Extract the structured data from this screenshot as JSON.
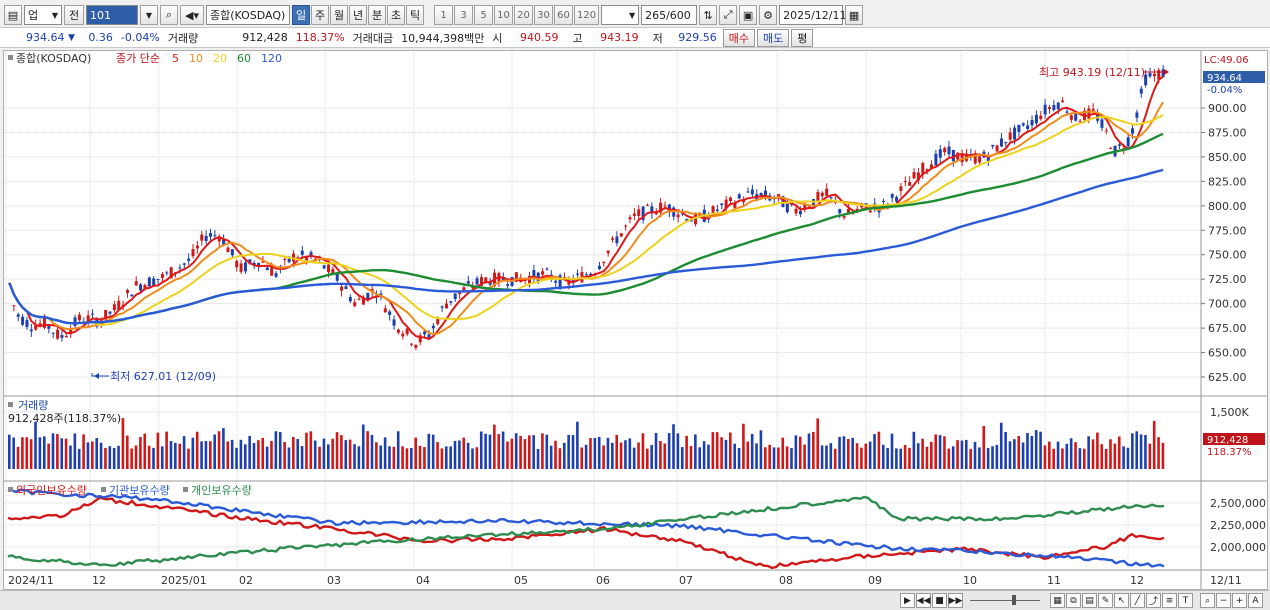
{
  "toolbar": {
    "market_select": "업",
    "prev_label": "전",
    "code_value": "101",
    "stock_name": "종합(KOSDAQ)",
    "period_tabs": [
      "일",
      "주",
      "월",
      "년",
      "분",
      "초",
      "틱"
    ],
    "active_period": "일",
    "minute_options": [
      "1",
      "3",
      "5",
      "10",
      "20",
      "30",
      "60",
      "120"
    ],
    "count_value": "265",
    "count_max": "/600",
    "date_value": "2025/12/11"
  },
  "quote": {
    "price": "934.64",
    "change": "0.36",
    "change_pct": "-0.04%",
    "volume_label": "거래량",
    "volume": "912,428",
    "volume_pct": "118.37%",
    "amount_label": "거래대금",
    "amount": "10,944,398백만",
    "open_label": "시",
    "open": "940.59",
    "high_label": "고",
    "high": "943.19",
    "low_label": "저",
    "low": "929.56",
    "buy_button": "매수",
    "sell_button": "매도",
    "eval_button": "평"
  },
  "price_panel": {
    "legend_name": "종합(KOSDAQ)",
    "legend_ma_label": "종가 단순",
    "ma_periods": [
      {
        "label": "5",
        "color": "#e01818"
      },
      {
        "label": "10",
        "color": "#f08c1c"
      },
      {
        "label": "20",
        "color": "#ecd21c"
      },
      {
        "label": "60",
        "color": "#1e8c32"
      },
      {
        "label": "120",
        "color": "#2a5ad8"
      }
    ],
    "y_ticks": [
      "900.00",
      "875.00",
      "850.00",
      "825.00",
      "800.00",
      "775.00",
      "750.00",
      "725.00",
      "700.00",
      "675.00",
      "650.00",
      "625.00"
    ],
    "top_partial_label": "LC:49.06",
    "current_price_tag": "934.64",
    "current_change_tag": "-0.04%",
    "max_annotation": "최고 943.19 (12/11)",
    "min_annotation": "최저 627.01 (12/09)"
  },
  "volume_panel": {
    "title": "거래량",
    "value_label": "912,428주(118.37%)",
    "y_ticks": [
      "1,500K"
    ],
    "current_tag": "912,428",
    "current_pct_tag": "118.37%"
  },
  "holdings_panel": {
    "legends": [
      {
        "label": "외국인보유수량",
        "color": "#d01818"
      },
      {
        "label": "기관보유수량",
        "color": "#2a5ad8"
      },
      {
        "label": "개인보유수량",
        "color": "#2e8c50"
      }
    ],
    "y_ticks": [
      "2,500,000",
      "2,250,000",
      "2,000,000"
    ]
  },
  "x_axis": {
    "labels": [
      "2024/11",
      "12",
      "2025/01",
      "02",
      "03",
      "04",
      "05",
      "06",
      "07",
      "08",
      "09",
      "10",
      "11",
      "12"
    ],
    "right_label": "12/11"
  },
  "colors": {
    "up_candle": "#d01818",
    "down_candle": "#1c3fb0",
    "grid": "#d8d8d8"
  }
}
